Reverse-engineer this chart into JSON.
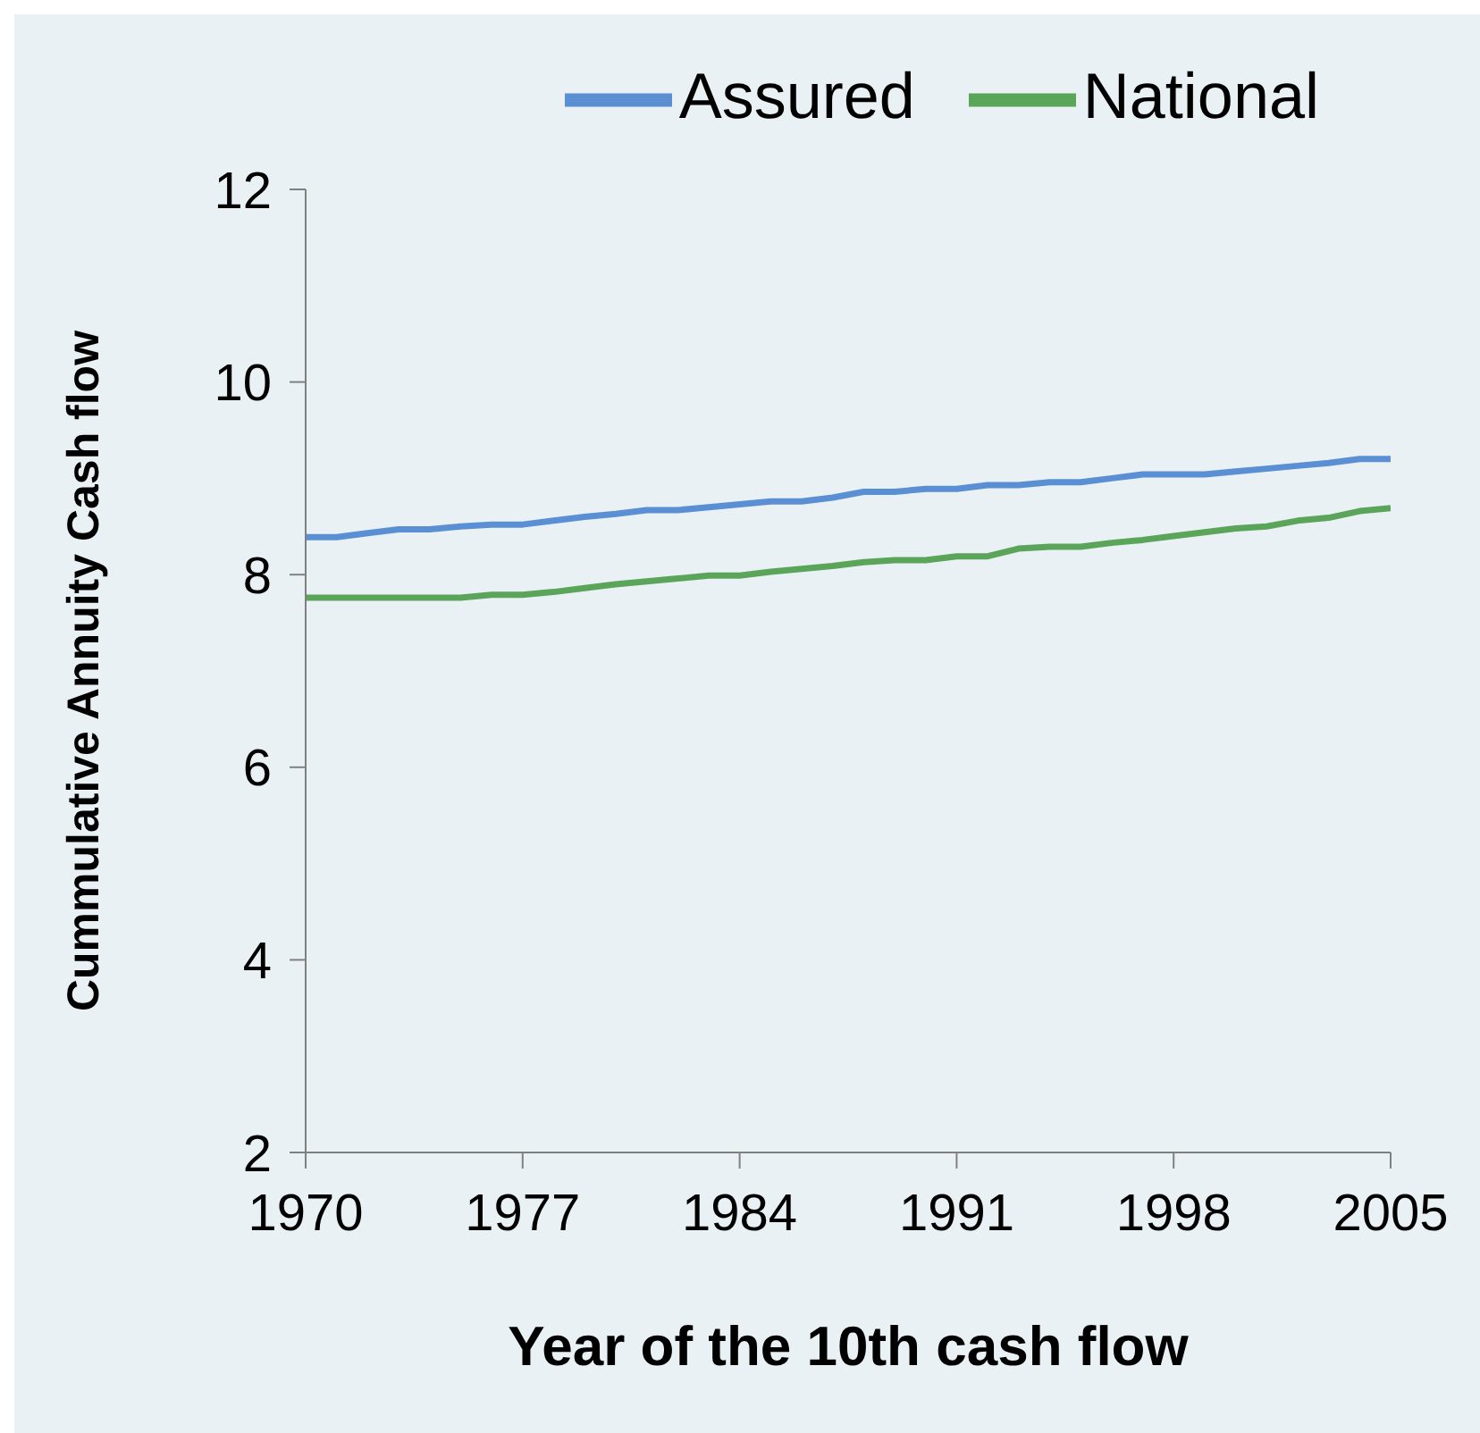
{
  "chart_data": {
    "type": "line",
    "xlabel": "Year of the 10th cash flow",
    "ylabel": "Cummulative Annuity Cash flow",
    "x": [
      1970,
      1971,
      1972,
      1973,
      1974,
      1975,
      1976,
      1977,
      1978,
      1979,
      1980,
      1981,
      1982,
      1983,
      1984,
      1985,
      1986,
      1987,
      1988,
      1989,
      1990,
      1991,
      1992,
      1993,
      1994,
      1995,
      1996,
      1997,
      1998,
      1999,
      2000,
      2001,
      2002,
      2003,
      2004,
      2005
    ],
    "series": [
      {
        "name": "Assured",
        "color": "#5b8fd4",
        "values": [
          8.39,
          8.39,
          8.43,
          8.47,
          8.47,
          8.5,
          8.52,
          8.52,
          8.56,
          8.6,
          8.63,
          8.67,
          8.67,
          8.7,
          8.73,
          8.76,
          8.76,
          8.8,
          8.86,
          8.86,
          8.89,
          8.89,
          8.93,
          8.93,
          8.96,
          8.96,
          9.0,
          9.04,
          9.04,
          9.04,
          9.07,
          9.1,
          9.13,
          9.16,
          9.2,
          9.2
        ]
      },
      {
        "name": "National",
        "color": "#5aa55a",
        "values": [
          7.76,
          7.76,
          7.76,
          7.76,
          7.76,
          7.76,
          7.79,
          7.79,
          7.82,
          7.86,
          7.9,
          7.93,
          7.96,
          7.99,
          7.99,
          8.03,
          8.06,
          8.09,
          8.13,
          8.15,
          8.15,
          8.19,
          8.19,
          8.27,
          8.29,
          8.29,
          8.33,
          8.36,
          8.4,
          8.44,
          8.48,
          8.5,
          8.56,
          8.59,
          8.66,
          8.69
        ]
      }
    ],
    "xlim": [
      1970,
      2005
    ],
    "xticks": [
      1970,
      1977,
      1984,
      1991,
      1998,
      2005
    ],
    "ylim": [
      2,
      12
    ],
    "yticks": [
      2,
      4,
      6,
      8,
      10,
      12
    ],
    "grid": false,
    "legend": "top right",
    "marker": "none",
    "line_style": "solid"
  }
}
